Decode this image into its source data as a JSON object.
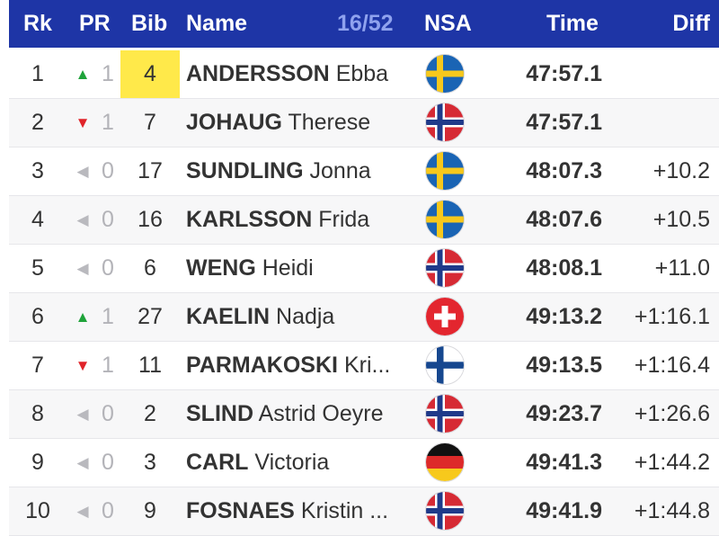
{
  "header": {
    "rk": "Rk",
    "pr": "PR",
    "bib": "Bib",
    "name": "Name",
    "count": "16/52",
    "nsa": "NSA",
    "time": "Time",
    "diff": "Diff"
  },
  "colors": {
    "header_bg": "#1e35a6",
    "highlight": "#ffe94a",
    "up": "#1fa33a",
    "down": "#e0242a"
  },
  "rows": [
    {
      "rank": "1",
      "trend": "up",
      "trend_icon": "▲",
      "pr": "1",
      "bib": "4",
      "bib_highlight": true,
      "last": "ANDERSSON",
      "first": "Ebba",
      "nsa": "SWE",
      "time": "47:57.1",
      "diff": ""
    },
    {
      "rank": "2",
      "trend": "down",
      "trend_icon": "▼",
      "pr": "1",
      "bib": "7",
      "bib_highlight": false,
      "last": "JOHAUG",
      "first": "Therese",
      "nsa": "NOR",
      "time": "47:57.1",
      "diff": ""
    },
    {
      "rank": "3",
      "trend": "same",
      "trend_icon": "◀",
      "pr": "0",
      "bib": "17",
      "bib_highlight": false,
      "last": "SUNDLING",
      "first": "Jonna",
      "nsa": "SWE",
      "time": "48:07.3",
      "diff": "+10.2"
    },
    {
      "rank": "4",
      "trend": "same",
      "trend_icon": "◀",
      "pr": "0",
      "bib": "16",
      "bib_highlight": false,
      "last": "KARLSSON",
      "first": "Frida",
      "nsa": "SWE",
      "time": "48:07.6",
      "diff": "+10.5"
    },
    {
      "rank": "5",
      "trend": "same",
      "trend_icon": "◀",
      "pr": "0",
      "bib": "6",
      "bib_highlight": false,
      "last": "WENG",
      "first": "Heidi",
      "nsa": "NOR",
      "time": "48:08.1",
      "diff": "+11.0"
    },
    {
      "rank": "6",
      "trend": "up",
      "trend_icon": "▲",
      "pr": "1",
      "bib": "27",
      "bib_highlight": false,
      "last": "KAELIN",
      "first": "Nadja",
      "nsa": "SUI",
      "time": "49:13.2",
      "diff": "+1:16.1"
    },
    {
      "rank": "7",
      "trend": "down",
      "trend_icon": "▼",
      "pr": "1",
      "bib": "11",
      "bib_highlight": false,
      "last": "PARMAKOSKI",
      "first": "Kri...",
      "nsa": "FIN",
      "time": "49:13.5",
      "diff": "+1:16.4"
    },
    {
      "rank": "8",
      "trend": "same",
      "trend_icon": "◀",
      "pr": "0",
      "bib": "2",
      "bib_highlight": false,
      "last": "SLIND",
      "first": "Astrid Oeyre",
      "nsa": "NOR",
      "time": "49:23.7",
      "diff": "+1:26.6"
    },
    {
      "rank": "9",
      "trend": "same",
      "trend_icon": "◀",
      "pr": "0",
      "bib": "3",
      "bib_highlight": false,
      "last": "CARL",
      "first": "Victoria",
      "nsa": "GER",
      "time": "49:41.3",
      "diff": "+1:44.2"
    },
    {
      "rank": "10",
      "trend": "same",
      "trend_icon": "◀",
      "pr": "0",
      "bib": "9",
      "bib_highlight": false,
      "last": "FOSNAES",
      "first": "Kristin ...",
      "nsa": "NOR",
      "time": "49:41.9",
      "diff": "+1:44.8"
    }
  ]
}
